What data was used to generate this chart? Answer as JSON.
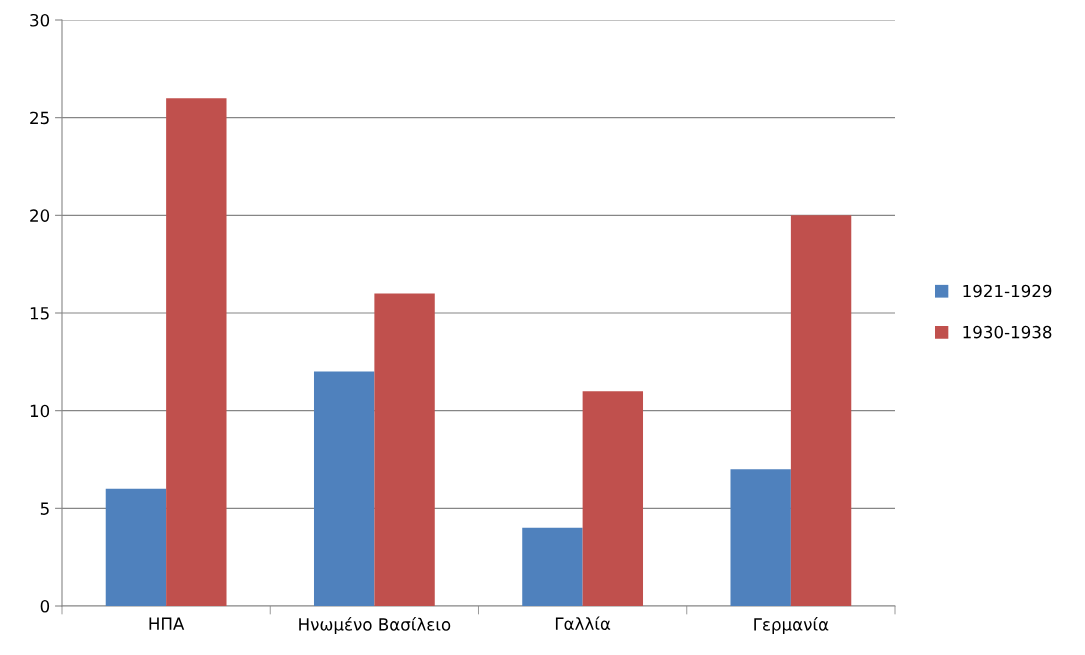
{
  "chart_data": {
    "type": "bar",
    "categories": [
      "ΗΠΑ",
      "Ηνωμένο Βασίλειο",
      "Γαλλία",
      "Γερμανία"
    ],
    "series": [
      {
        "name": "1921-1929",
        "color": "#4f81bd",
        "values": [
          6,
          12,
          4,
          7
        ]
      },
      {
        "name": "1930-1938",
        "color": "#c0504d",
        "values": [
          26,
          16,
          11,
          20
        ]
      }
    ],
    "ylim": [
      0,
      30
    ],
    "yticks": [
      0,
      5,
      10,
      15,
      20,
      25,
      30
    ],
    "grid": "y",
    "legend": "right"
  }
}
